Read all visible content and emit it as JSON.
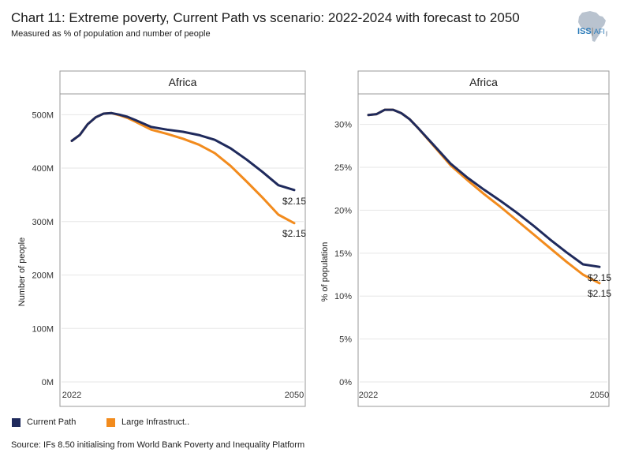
{
  "title": "Chart 11: Extreme poverty, Current Path vs scenario: 2022-2024 with forecast to 2050",
  "subtitle": "Measured as % of population and number of people",
  "logo": {
    "name": "ISS",
    "suffix": "AFI"
  },
  "legend": [
    {
      "label": "Current Path",
      "color": "#1f2a5c"
    },
    {
      "label": "Large Infrastruct..",
      "color": "#f28b1d"
    }
  ],
  "source": "Source: IFs 8.50 initialising from World Bank Poverty and Inequality Platform",
  "chart_data": [
    {
      "type": "line",
      "title": "Africa",
      "ylabel": "Number of people",
      "xlabel": "",
      "xlim": [
        2022,
        2050
      ],
      "ylim": [
        0,
        530000000
      ],
      "x_ticks": [
        "2022",
        "2050"
      ],
      "y_ticks": [
        "0M",
        "100M",
        "200M",
        "300M",
        "400M",
        "500M"
      ],
      "y_tick_values": [
        0,
        100000000,
        200000000,
        300000000,
        400000000,
        500000000
      ],
      "grid": true,
      "series": [
        {
          "name": "Current Path",
          "color": "#1f2a5c",
          "end_label": "$2.15",
          "x": [
            2022,
            2023,
            2024,
            2025,
            2026,
            2027,
            2028,
            2029,
            2030,
            2032,
            2034,
            2036,
            2038,
            2040,
            2042,
            2044,
            2046,
            2048,
            2050
          ],
          "y": [
            451000000,
            462000000,
            482000000,
            495000000,
            502000000,
            503000000,
            500000000,
            496000000,
            490000000,
            477000000,
            472000000,
            468000000,
            462000000,
            453000000,
            437000000,
            416000000,
            393000000,
            368000000,
            359000000
          ]
        },
        {
          "name": "Large Infrastruct..",
          "color": "#f28b1d",
          "end_label": "$2.15",
          "x": [
            2022,
            2023,
            2024,
            2025,
            2026,
            2027,
            2028,
            2029,
            2030,
            2032,
            2034,
            2036,
            2038,
            2040,
            2042,
            2044,
            2046,
            2048,
            2050
          ],
          "y": [
            451000000,
            462000000,
            482000000,
            495000000,
            502000000,
            503000000,
            499000000,
            494000000,
            487000000,
            472000000,
            464000000,
            455000000,
            444000000,
            428000000,
            404000000,
            375000000,
            345000000,
            313000000,
            297000000
          ]
        }
      ]
    },
    {
      "type": "line",
      "title": "Africa",
      "ylabel": "% of population",
      "xlabel": "",
      "xlim": [
        2022,
        2050
      ],
      "ylim": [
        0,
        33
      ],
      "x_ticks": [
        "2022",
        "2050"
      ],
      "y_ticks": [
        "0%",
        "5%",
        "10%",
        "15%",
        "20%",
        "25%",
        "30%"
      ],
      "y_tick_values": [
        0,
        5,
        10,
        15,
        20,
        25,
        30
      ],
      "grid": true,
      "series": [
        {
          "name": "Current Path",
          "color": "#1f2a5c",
          "end_label": "$2.15",
          "x": [
            2022,
            2023,
            2024,
            2025,
            2026,
            2027,
            2028,
            2030,
            2032,
            2034,
            2036,
            2038,
            2040,
            2042,
            2044,
            2046,
            2048,
            2050
          ],
          "y": [
            31.1,
            31.2,
            31.7,
            31.7,
            31.3,
            30.6,
            29.6,
            27.5,
            25.4,
            23.8,
            22.4,
            21.1,
            19.7,
            18.2,
            16.6,
            15.1,
            13.7,
            13.4
          ]
        },
        {
          "name": "Large Infrastruct..",
          "color": "#f28b1d",
          "end_label": "$2.15",
          "x": [
            2022,
            2023,
            2024,
            2025,
            2026,
            2027,
            2028,
            2030,
            2032,
            2034,
            2036,
            2038,
            2040,
            2042,
            2044,
            2046,
            2048,
            2050
          ],
          "y": [
            31.1,
            31.2,
            31.7,
            31.7,
            31.3,
            30.6,
            29.6,
            27.4,
            25.2,
            23.5,
            21.9,
            20.4,
            18.8,
            17.2,
            15.6,
            14.0,
            12.5,
            11.5
          ]
        }
      ]
    }
  ]
}
